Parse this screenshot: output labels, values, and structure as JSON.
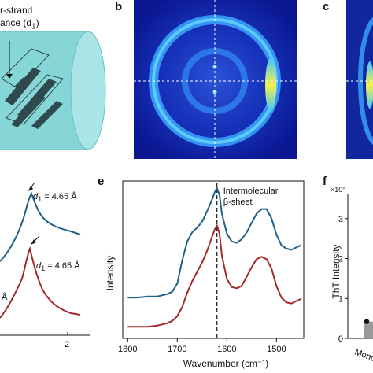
{
  "panel_a": {
    "annotation_line1": "r-strand",
    "annotation_line2": "ance (d",
    "annotation_sub": "1",
    "annotation_end": ")"
  },
  "panel_labels": {
    "b": "b",
    "c": "c",
    "e": "e",
    "f": "f"
  },
  "panel_d": {
    "peak_label_top": "= 4.65 Å",
    "peak_label_bottom": "= 4.65 Å",
    "d_symbol": "d",
    "d_sub": "1",
    "partial_label": "Å",
    "x_tick": "2"
  },
  "chart_data": [
    {
      "type": "line",
      "panel": "e",
      "xlabel": "Wavenumber (cm⁻¹)",
      "ylabel": "Intensity",
      "annotation": [
        "Intermolecular",
        "β-sheet"
      ],
      "annotation_line_x": 1620,
      "x_reversed": true,
      "xlim": [
        1810,
        1445
      ],
      "x_ticks": [
        1800,
        1700,
        1600,
        1500
      ],
      "series": [
        {
          "color": "#1f5f8b",
          "x": [
            1800,
            1780,
            1760,
            1740,
            1720,
            1710,
            1700,
            1690,
            1680,
            1670,
            1660,
            1650,
            1640,
            1630,
            1625,
            1620,
            1615,
            1610,
            1600,
            1590,
            1580,
            1570,
            1560,
            1550,
            1540,
            1530,
            1520,
            1510,
            1500,
            1490,
            1480,
            1470,
            1460,
            1450
          ],
          "y": [
            0.0,
            0.0,
            0.01,
            0.01,
            0.03,
            0.05,
            0.12,
            0.32,
            0.48,
            0.56,
            0.6,
            0.65,
            0.74,
            0.84,
            0.9,
            0.94,
            0.88,
            0.72,
            0.55,
            0.48,
            0.47,
            0.5,
            0.56,
            0.64,
            0.72,
            0.76,
            0.76,
            0.68,
            0.54,
            0.45,
            0.42,
            0.41,
            0.43,
            0.45
          ]
        },
        {
          "color": "#a12a2a",
          "x": [
            1800,
            1780,
            1760,
            1740,
            1720,
            1710,
            1700,
            1690,
            1680,
            1670,
            1660,
            1650,
            1640,
            1630,
            1625,
            1620,
            1615,
            1610,
            1600,
            1590,
            1580,
            1570,
            1560,
            1550,
            1540,
            1530,
            1520,
            1510,
            1500,
            1490,
            1480,
            1470,
            1460,
            1450
          ],
          "y": [
            -0.25,
            -0.25,
            -0.25,
            -0.24,
            -0.22,
            -0.2,
            -0.16,
            -0.08,
            0.04,
            0.14,
            0.22,
            0.3,
            0.4,
            0.52,
            0.58,
            0.62,
            0.55,
            0.36,
            0.16,
            0.09,
            0.08,
            0.1,
            0.18,
            0.26,
            0.33,
            0.35,
            0.33,
            0.25,
            0.1,
            0.0,
            -0.04,
            -0.05,
            -0.03,
            -0.01
          ]
        }
      ]
    },
    {
      "type": "bar",
      "panel": "f",
      "ylabel": "ThT Intensity",
      "multiplier": "×10⁵",
      "y_ticks": [
        0,
        1,
        2,
        3
      ],
      "categories": [
        "Mono"
      ],
      "values": [
        0.42
      ]
    }
  ]
}
